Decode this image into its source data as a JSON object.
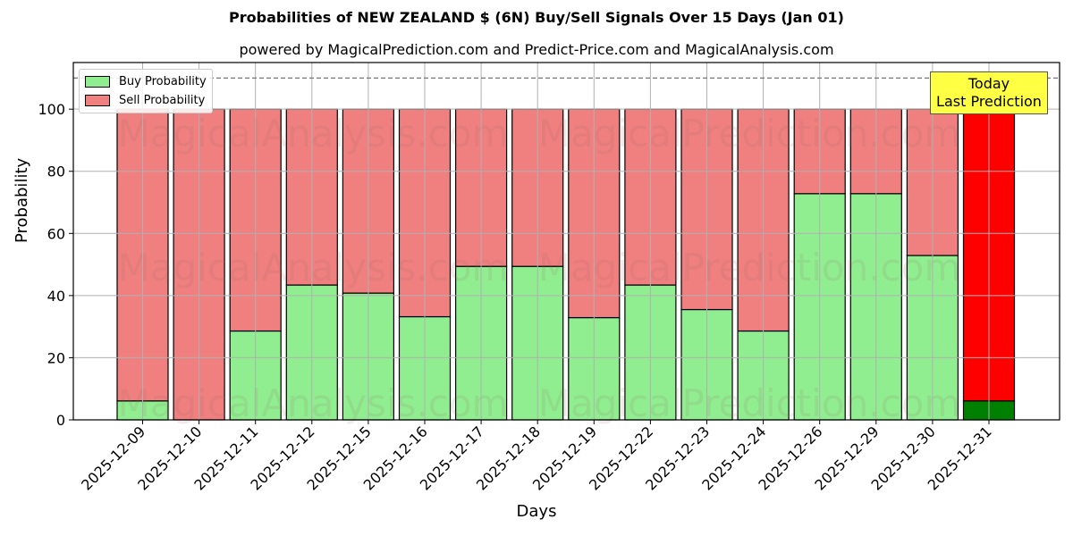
{
  "chart_data": {
    "type": "bar",
    "stacked": true,
    "title": "Probabilities of NEW ZEALAND $ (6N) Buy/Sell Signals Over 15 Days (Jan 01)",
    "subtitle": "powered by MagicalPrediction.com and Predict-Price.com and MagicalAnalysis.com",
    "xlabel": "Days",
    "ylabel": "Probability",
    "ylim": [
      0,
      115
    ],
    "yticks": [
      0,
      20,
      40,
      60,
      80,
      100
    ],
    "reference_line": 110,
    "grid": true,
    "legend_position": "upper left",
    "categories": [
      "2025-12-09",
      "2025-12-10",
      "2025-12-11",
      "2025-12-12",
      "2025-12-15",
      "2025-12-16",
      "2025-12-17",
      "2025-12-18",
      "2025-12-19",
      "2025-12-22",
      "2025-12-23",
      "2025-12-24",
      "2025-12-26",
      "2025-12-29",
      "2025-12-30",
      "2025-12-31"
    ],
    "series": [
      {
        "name": "Buy Probability",
        "color": "#90ee90",
        "values": [
          6.1,
          0,
          28.6,
          43.4,
          40.8,
          33.2,
          49.4,
          49.4,
          32.9,
          43.4,
          35.5,
          28.6,
          72.8,
          72.8,
          52.9,
          6.1
        ]
      },
      {
        "name": "Sell Probability",
        "color": "#f08080",
        "values": [
          93.9,
          100,
          71.4,
          56.6,
          59.2,
          66.8,
          50.6,
          50.6,
          67.1,
          56.6,
          64.5,
          71.4,
          27.2,
          27.2,
          47.1,
          93.9
        ]
      }
    ],
    "highlight": {
      "index": 15,
      "buy_color": "#008000",
      "sell_color": "#ff0000",
      "label_line1": "Today",
      "label_line2": "Last Prediction",
      "box_color": "#ffff44"
    },
    "watermarks": [
      "MagicalAnalysis.com",
      "MagicalPrediction.com"
    ]
  },
  "legend": {
    "buy": "Buy Probability",
    "sell": "Sell Probability"
  }
}
